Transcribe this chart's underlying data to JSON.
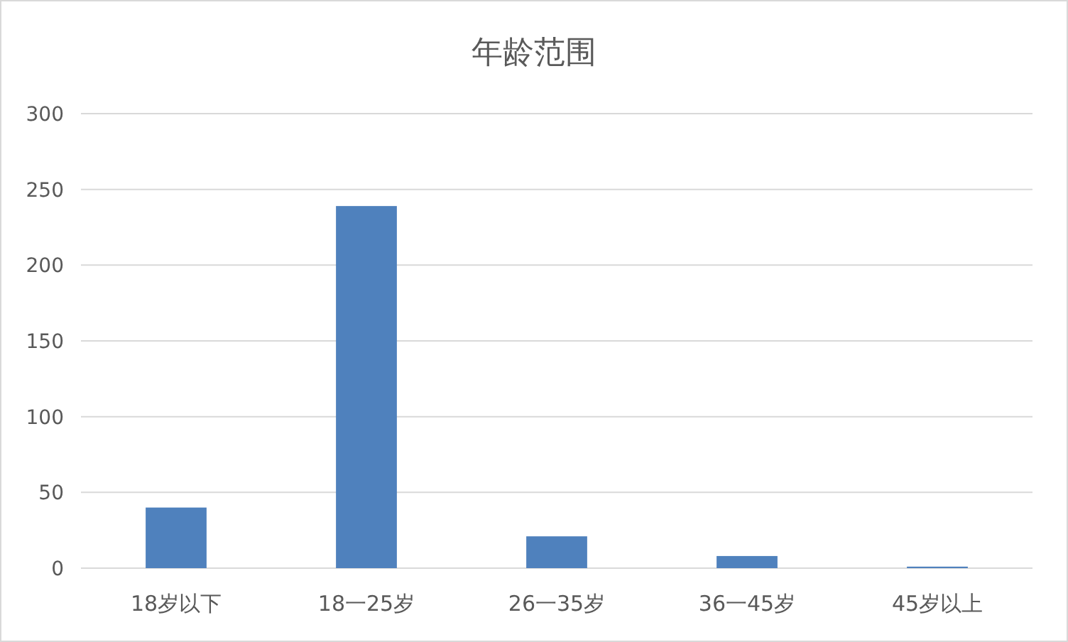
{
  "chart_data": {
    "type": "bar",
    "title": "年龄范围",
    "categories": [
      "18岁以下",
      "18一25岁",
      "26一35岁",
      "36一45岁",
      "45岁以上"
    ],
    "values": [
      40,
      239,
      21,
      8,
      1
    ],
    "color": "#4f81bd",
    "ylim": [
      0,
      300
    ],
    "yticks": [
      0,
      50,
      100,
      150,
      200,
      250,
      300
    ],
    "grid": "y"
  }
}
